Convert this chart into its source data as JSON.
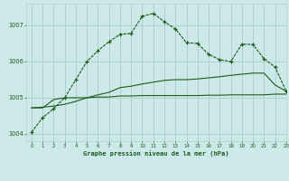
{
  "title": "Graphe pression niveau de la mer (hPa)",
  "bg_color": "#cce8e8",
  "grid_color": "#b0d0d0",
  "line_color": "#1a5c1a",
  "xlim": [
    -0.5,
    23
  ],
  "ylim": [
    1003.8,
    1007.6
  ],
  "yticks": [
    1004,
    1005,
    1006,
    1007
  ],
  "xticks": [
    0,
    1,
    2,
    3,
    4,
    5,
    6,
    7,
    8,
    9,
    10,
    11,
    12,
    13,
    14,
    15,
    16,
    17,
    18,
    19,
    20,
    21,
    22,
    23
  ],
  "series1_x": [
    0,
    1,
    2,
    3,
    4,
    5,
    6,
    7,
    8,
    9,
    10,
    11,
    12,
    13,
    14,
    15,
    16,
    17,
    18,
    19,
    20,
    21,
    22,
    23
  ],
  "series1_y": [
    1004.05,
    1004.45,
    1004.7,
    1005.0,
    1005.5,
    1006.0,
    1006.3,
    1006.55,
    1006.75,
    1006.78,
    1007.25,
    1007.33,
    1007.1,
    1006.9,
    1006.52,
    1006.5,
    1006.2,
    1006.05,
    1006.0,
    1006.48,
    1006.47,
    1006.08,
    1005.85,
    1005.18
  ],
  "series2_x": [
    0,
    1,
    2,
    3,
    4,
    5,
    6,
    7,
    8,
    9,
    10,
    11,
    12,
    13,
    14,
    15,
    16,
    17,
    18,
    19,
    20,
    21,
    22,
    23
  ],
  "series2_y": [
    1004.72,
    1004.72,
    1004.95,
    1005.0,
    1005.0,
    1005.0,
    1005.02,
    1005.02,
    1005.05,
    1005.05,
    1005.06,
    1005.06,
    1005.06,
    1005.06,
    1005.06,
    1005.06,
    1005.07,
    1005.07,
    1005.08,
    1005.08,
    1005.08,
    1005.08,
    1005.1,
    1005.1
  ],
  "series3_x": [
    0,
    1,
    2,
    3,
    4,
    5,
    6,
    7,
    8,
    9,
    10,
    11,
    12,
    13,
    14,
    15,
    16,
    17,
    18,
    19,
    20,
    21,
    22,
    23
  ],
  "series3_y": [
    1004.72,
    1004.74,
    1004.77,
    1004.82,
    1004.9,
    1005.0,
    1005.08,
    1005.15,
    1005.28,
    1005.32,
    1005.38,
    1005.43,
    1005.48,
    1005.5,
    1005.5,
    1005.52,
    1005.55,
    1005.58,
    1005.62,
    1005.65,
    1005.68,
    1005.68,
    1005.35,
    1005.18
  ]
}
